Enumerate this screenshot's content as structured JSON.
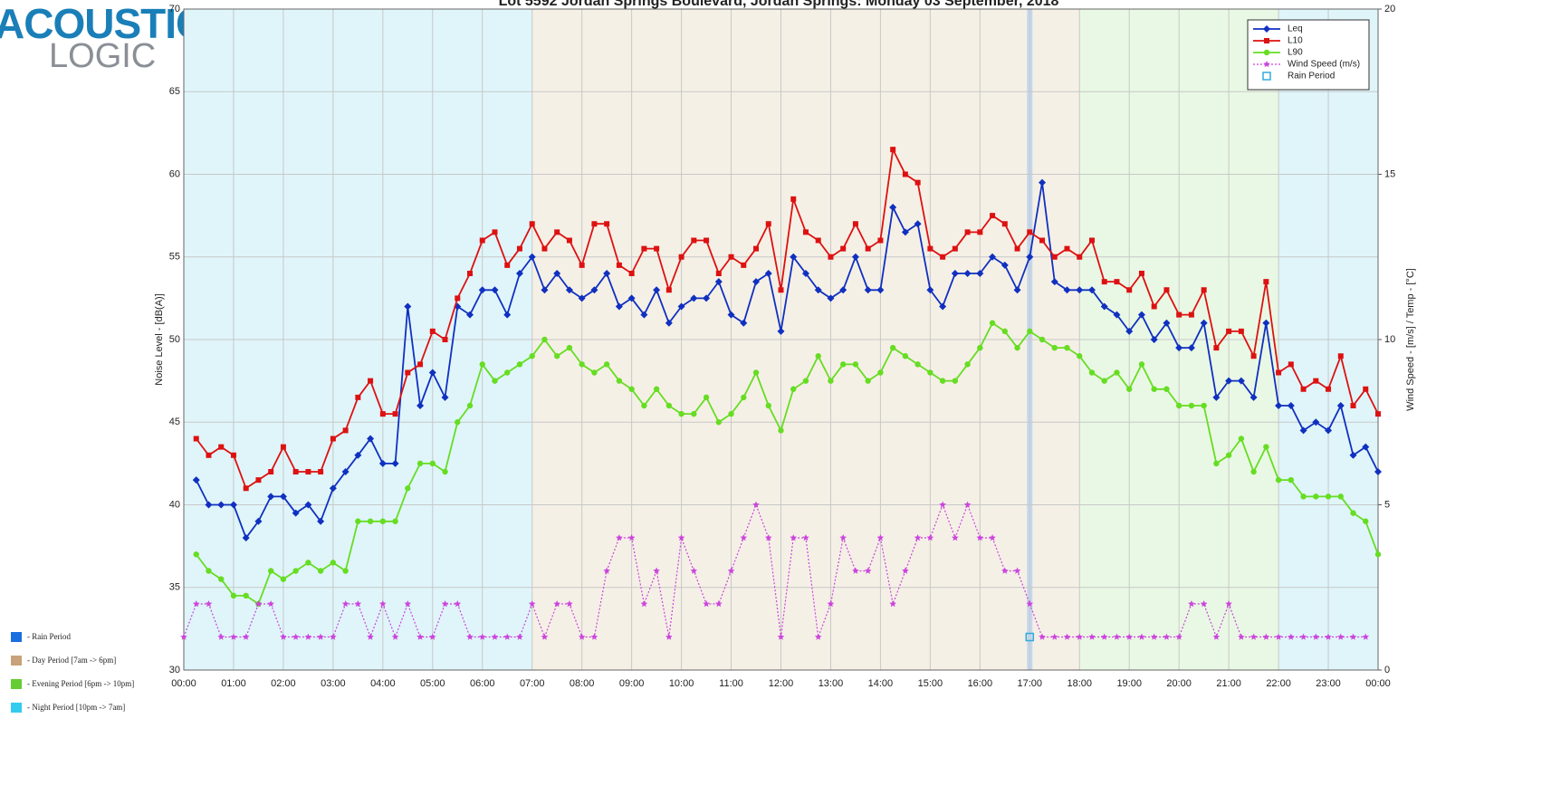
{
  "chart_data": {
    "type": "line",
    "title": "Lot 5592 Jordan Springs Boulevard, Jordan Springs: Monday 03 September, 2018",
    "logo": [
      "ACOUSTIC",
      "LOGIC"
    ],
    "y_label": "Noise Level - [dB(A)]",
    "y2_label": "Wind Speed - [m/s] / Temp - [°C]",
    "xlim": [
      0,
      24
    ],
    "xticks": [
      {
        "value": 0,
        "label": "00:00"
      },
      {
        "value": 1,
        "label": "01:00"
      },
      {
        "value": 2,
        "label": "02:00"
      },
      {
        "value": 3,
        "label": "03:00"
      },
      {
        "value": 4,
        "label": "04:00"
      },
      {
        "value": 5,
        "label": "05:00"
      },
      {
        "value": 6,
        "label": "06:00"
      },
      {
        "value": 7,
        "label": "07:00"
      },
      {
        "value": 8,
        "label": "08:00"
      },
      {
        "value": 9,
        "label": "09:00"
      },
      {
        "value": 10,
        "label": "10:00"
      },
      {
        "value": 11,
        "label": "11:00"
      },
      {
        "value": 12,
        "label": "12:00"
      },
      {
        "value": 13,
        "label": "13:00"
      },
      {
        "value": 14,
        "label": "14:00"
      },
      {
        "value": 15,
        "label": "15:00"
      },
      {
        "value": 16,
        "label": "16:00"
      },
      {
        "value": 17,
        "label": "17:00"
      },
      {
        "value": 18,
        "label": "18:00"
      },
      {
        "value": 19,
        "label": "19:00"
      },
      {
        "value": 20,
        "label": "20:00"
      },
      {
        "value": 21,
        "label": "21:00"
      },
      {
        "value": 22,
        "label": "22:00"
      },
      {
        "value": 23,
        "label": "23:00"
      },
      {
        "value": 24,
        "label": "00:00"
      }
    ],
    "ylim": [
      30,
      70
    ],
    "yticks": [
      30,
      35,
      40,
      45,
      50,
      55,
      60,
      65,
      70
    ],
    "y2lim": [
      0,
      20
    ],
    "y2ticks": [
      0,
      5,
      10,
      15,
      20
    ],
    "grid": true,
    "legend_position": "upper right",
    "periods": [
      {
        "start": 0,
        "end": 7,
        "color": "#dff5fa"
      },
      {
        "start": 7,
        "end": 18,
        "color": "#f5f0e6"
      },
      {
        "start": 18,
        "end": 22,
        "color": "#e9f8e4"
      },
      {
        "start": 22,
        "end": 24,
        "color": "#dff5fa"
      }
    ],
    "period_legend": [
      {
        "label": "- Rain Period",
        "color": "#1a6fe0"
      },
      {
        "label": "- Day Period [7am -> 6pm]",
        "color": "#c8a27a"
      },
      {
        "label": "- Evening Period [6pm -> 10pm]",
        "color": "#66cc33"
      },
      {
        "label": "- Night Period [10pm -> 7am]",
        "color": "#33ccee"
      }
    ],
    "x": [
      0.25,
      0.5,
      0.75,
      1,
      1.25,
      1.5,
      1.75,
      2,
      2.25,
      2.5,
      2.75,
      3,
      3.25,
      3.5,
      3.75,
      4,
      4.25,
      4.5,
      4.75,
      5,
      5.25,
      5.5,
      5.75,
      6,
      6.25,
      6.5,
      6.75,
      7,
      7.25,
      7.5,
      7.75,
      8,
      8.25,
      8.5,
      8.75,
      9,
      9.25,
      9.5,
      9.75,
      10,
      10.25,
      10.5,
      10.75,
      11,
      11.25,
      11.5,
      11.75,
      12,
      12.25,
      12.5,
      12.75,
      13,
      13.25,
      13.5,
      13.75,
      14,
      14.25,
      14.5,
      14.75,
      15,
      15.25,
      15.5,
      15.75,
      16,
      16.25,
      16.5,
      16.75,
      17,
      17.25,
      17.5,
      17.75,
      18,
      18.25,
      18.5,
      18.75,
      19,
      19.25,
      19.5,
      19.75,
      20,
      20.25,
      20.5,
      20.75,
      21,
      21.25,
      21.5,
      21.75,
      22,
      22.25,
      22.5,
      22.75,
      23,
      23.25,
      23.5,
      23.75,
      24
    ],
    "series": [
      {
        "name": "Leq",
        "color": "#1030c0",
        "marker": "diamond",
        "values": [
          41.5,
          40,
          40,
          40,
          38,
          39,
          40.5,
          40.5,
          39.5,
          40,
          39,
          41,
          42,
          43,
          44,
          42.5,
          42.5,
          52,
          46,
          48,
          46.5,
          52,
          51.5,
          53,
          53,
          51.5,
          54,
          55,
          53,
          54,
          53,
          52.5,
          53,
          54,
          52,
          52.5,
          51.5,
          53,
          51,
          52,
          52.5,
          52.5,
          53.5,
          51.5,
          51,
          53.5,
          54,
          50.5,
          55,
          54,
          53,
          52.5,
          53,
          55,
          53,
          53,
          58,
          56.5,
          57,
          53,
          52,
          54,
          54,
          54,
          55,
          54.5,
          53,
          55,
          59.5,
          53.5,
          53,
          53,
          53,
          52,
          51.5,
          50.5,
          51.5,
          50,
          51,
          49.5,
          49.5,
          51,
          46.5,
          47.5,
          47.5,
          46.5,
          51,
          46,
          46,
          44.5,
          45,
          44.5,
          46,
          43,
          43.5,
          42
        ]
      },
      {
        "name": "L10",
        "color": "#dd1111",
        "marker": "square",
        "values": [
          44,
          43,
          43.5,
          43,
          41,
          41.5,
          42,
          43.5,
          42,
          42,
          42,
          44,
          44.5,
          46.5,
          47.5,
          45.5,
          45.5,
          48,
          48.5,
          50.5,
          50,
          52.5,
          54,
          56,
          56.5,
          54.5,
          55.5,
          57,
          55.5,
          56.5,
          56,
          54.5,
          57,
          57,
          54.5,
          54,
          55.5,
          55.5,
          53,
          55,
          56,
          56,
          54,
          55,
          54.5,
          55.5,
          57,
          53,
          58.5,
          56.5,
          56,
          55,
          55.5,
          57,
          55.5,
          56,
          61.5,
          60,
          59.5,
          55.5,
          55,
          55.5,
          56.5,
          56.5,
          57.5,
          57,
          55.5,
          56.5,
          56,
          55,
          55.5,
          55,
          56,
          53.5,
          53.5,
          53,
          54,
          52,
          53,
          51.5,
          51.5,
          53,
          49.5,
          50.5,
          50.5,
          49,
          53.5,
          48,
          48.5,
          47,
          47.5,
          47,
          49,
          46,
          47,
          45.5
        ]
      },
      {
        "name": "L90",
        "color": "#66dd22",
        "marker": "circle",
        "values": [
          37,
          36,
          35.5,
          34.5,
          34.5,
          34,
          36,
          35.5,
          36,
          36.5,
          36,
          36.5,
          36,
          39,
          39,
          39,
          39,
          41,
          42.5,
          42.5,
          42,
          45,
          46,
          48.5,
          47.5,
          48,
          48.5,
          49,
          50,
          49,
          49.5,
          48.5,
          48,
          48.5,
          47.5,
          47,
          46,
          47,
          46,
          45.5,
          45.5,
          46.5,
          45,
          45.5,
          46.5,
          48,
          46,
          44.5,
          47,
          47.5,
          49,
          47.5,
          48.5,
          48.5,
          47.5,
          48,
          49.5,
          49,
          48.5,
          48,
          47.5,
          47.5,
          48.5,
          49.5,
          51,
          50.5,
          49.5,
          50.5,
          50,
          49.5,
          49.5,
          49,
          48,
          47.5,
          48,
          47,
          48.5,
          47,
          47,
          46,
          46,
          46,
          42.5,
          43,
          44,
          42,
          43.5,
          41.5,
          41.5,
          40.5,
          40.5,
          40.5,
          40.5,
          39.5,
          39,
          37
        ]
      },
      {
        "name": "Wind Speed (m/s)",
        "color": "#cc44dd",
        "marker": "star",
        "axis": "y2",
        "dashed": true,
        "x": [
          0,
          0.25,
          0.5,
          0.75,
          1,
          1.25,
          1.5,
          1.75,
          2,
          2.25,
          2.5,
          2.75,
          3,
          3.25,
          3.5,
          3.75,
          4,
          4.25,
          4.5,
          4.75,
          5,
          5.25,
          5.5,
          5.75,
          6,
          6.25,
          6.5,
          6.75,
          7,
          7.25,
          7.5,
          7.75,
          8,
          8.25,
          8.5,
          8.75,
          9,
          9.25,
          9.5,
          9.75,
          10,
          10.25,
          10.5,
          10.75,
          11,
          11.25,
          11.5,
          11.75,
          12,
          12.25,
          12.5,
          12.75,
          13,
          13.25,
          13.5,
          13.75,
          14,
          14.25,
          14.5,
          14.75,
          15,
          15.25,
          15.5,
          15.75,
          16,
          16.25,
          16.5,
          16.75,
          17,
          17.25,
          17.5,
          17.75,
          18,
          18.25,
          18.5,
          18.75,
          19,
          19.25,
          19.5,
          19.75,
          20,
          20.25,
          20.5,
          20.75,
          21,
          21.25,
          21.5,
          21.75,
          22,
          22.25,
          22.5,
          22.75,
          23,
          23.25,
          23.5,
          23.75
        ],
        "values": [
          1,
          2,
          2,
          1,
          1,
          1,
          2,
          2,
          1,
          1,
          1,
          1,
          1,
          2,
          2,
          1,
          2,
          1,
          2,
          1,
          1,
          2,
          2,
          1,
          1,
          1,
          1,
          1,
          2,
          1,
          2,
          2,
          1,
          1,
          3,
          4,
          4,
          2,
          3,
          1,
          4,
          3,
          2,
          2,
          3,
          4,
          5,
          4,
          1,
          4,
          4,
          1,
          2,
          4,
          3,
          3,
          4,
          2,
          3,
          4,
          4,
          5,
          4,
          5,
          4,
          4,
          3,
          3,
          2,
          1,
          1,
          1,
          1,
          1,
          1,
          1,
          1,
          1,
          1,
          1,
          1,
          2,
          2,
          1,
          2,
          1,
          1,
          1,
          1,
          1,
          1,
          1,
          1,
          1,
          1,
          1
        ]
      },
      {
        "name": "Rain Period",
        "color": "#33aadd",
        "marker": "hollow-square",
        "axis": "y2",
        "no_line": true,
        "x": [
          17
        ],
        "values": [
          1
        ]
      }
    ]
  }
}
